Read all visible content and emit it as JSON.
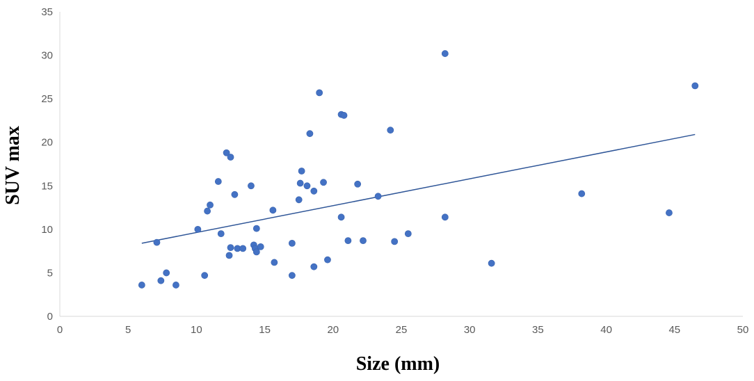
{
  "chart_data": {
    "type": "scatter",
    "xlabel": "Size (mm)",
    "ylabel": "SUV max",
    "xlim": [
      0,
      50
    ],
    "ylim": [
      0,
      35
    ],
    "xticks": [
      0,
      5,
      10,
      15,
      20,
      25,
      30,
      35,
      40,
      45,
      50
    ],
    "yticks": [
      0,
      5,
      10,
      15,
      20,
      25,
      30,
      35
    ],
    "grid": false,
    "point_color": "#4472C4",
    "trendline_color": "#2E5597",
    "axis_color": "#D9D9D9",
    "trendline": {
      "x": [
        6,
        46.5
      ],
      "y": [
        8.4,
        20.9
      ]
    },
    "points": [
      {
        "x": 6.0,
        "y": 3.6
      },
      {
        "x": 7.1,
        "y": 8.5
      },
      {
        "x": 7.4,
        "y": 4.1
      },
      {
        "x": 7.8,
        "y": 5.0
      },
      {
        "x": 8.5,
        "y": 3.6
      },
      {
        "x": 10.1,
        "y": 10.0
      },
      {
        "x": 10.6,
        "y": 4.7
      },
      {
        "x": 10.8,
        "y": 12.1
      },
      {
        "x": 11.0,
        "y": 12.8
      },
      {
        "x": 11.6,
        "y": 15.5
      },
      {
        "x": 11.8,
        "y": 9.5
      },
      {
        "x": 12.2,
        "y": 18.8
      },
      {
        "x": 12.4,
        "y": 7.0
      },
      {
        "x": 12.5,
        "y": 7.9
      },
      {
        "x": 12.5,
        "y": 18.3
      },
      {
        "x": 12.8,
        "y": 14.0
      },
      {
        "x": 13.0,
        "y": 7.8
      },
      {
        "x": 13.4,
        "y": 7.8
      },
      {
        "x": 14.0,
        "y": 15.0
      },
      {
        "x": 14.2,
        "y": 8.2
      },
      {
        "x": 14.3,
        "y": 7.8
      },
      {
        "x": 14.4,
        "y": 7.4
      },
      {
        "x": 14.4,
        "y": 10.1
      },
      {
        "x": 14.7,
        "y": 8.0
      },
      {
        "x": 15.6,
        "y": 12.2
      },
      {
        "x": 15.7,
        "y": 6.2
      },
      {
        "x": 17.0,
        "y": 8.4
      },
      {
        "x": 17.0,
        "y": 4.7
      },
      {
        "x": 17.5,
        "y": 13.4
      },
      {
        "x": 17.6,
        "y": 15.3
      },
      {
        "x": 17.7,
        "y": 16.7
      },
      {
        "x": 18.1,
        "y": 15.0
      },
      {
        "x": 18.3,
        "y": 21.0
      },
      {
        "x": 18.6,
        "y": 14.4
      },
      {
        "x": 18.6,
        "y": 5.7
      },
      {
        "x": 19.0,
        "y": 25.7
      },
      {
        "x": 19.3,
        "y": 15.4
      },
      {
        "x": 19.6,
        "y": 6.5
      },
      {
        "x": 20.6,
        "y": 11.4
      },
      {
        "x": 20.6,
        "y": 23.2
      },
      {
        "x": 20.8,
        "y": 23.1
      },
      {
        "x": 21.1,
        "y": 8.7
      },
      {
        "x": 21.8,
        "y": 15.2
      },
      {
        "x": 22.2,
        "y": 8.7
      },
      {
        "x": 23.3,
        "y": 13.8
      },
      {
        "x": 24.2,
        "y": 21.4
      },
      {
        "x": 24.5,
        "y": 8.6
      },
      {
        "x": 25.5,
        "y": 9.5
      },
      {
        "x": 28.2,
        "y": 11.4
      },
      {
        "x": 28.2,
        "y": 30.2
      },
      {
        "x": 31.6,
        "y": 6.1
      },
      {
        "x": 38.2,
        "y": 14.1
      },
      {
        "x": 44.6,
        "y": 11.9
      },
      {
        "x": 46.5,
        "y": 26.5
      }
    ]
  }
}
